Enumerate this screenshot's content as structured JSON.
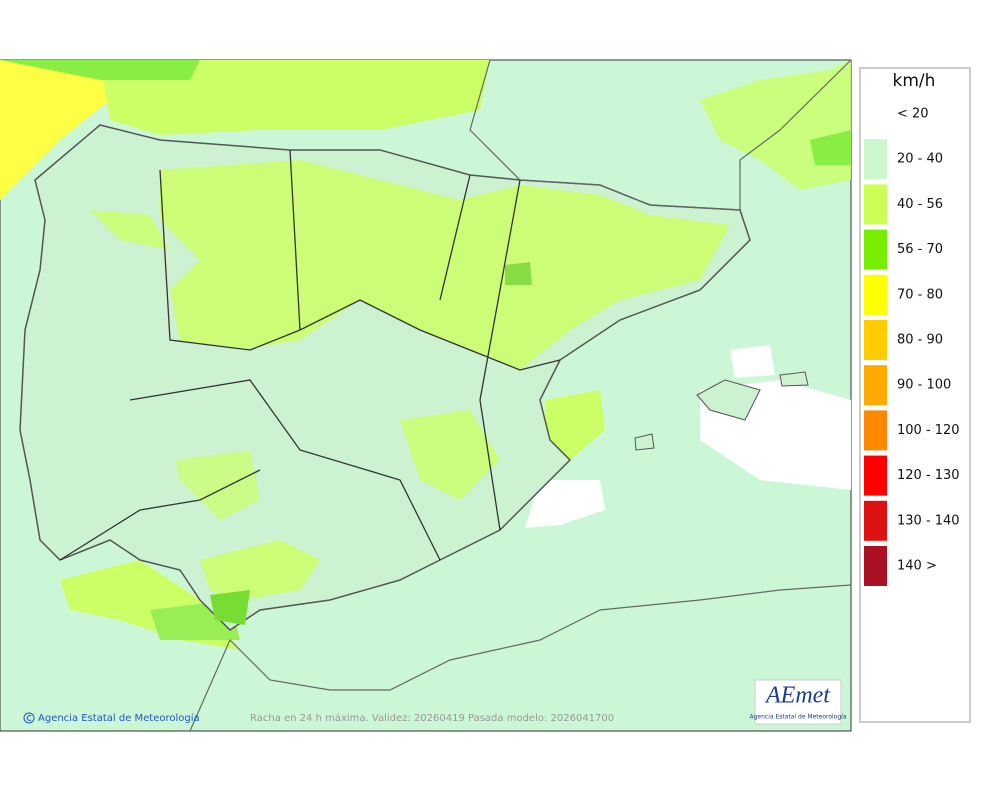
{
  "map": {
    "legend": {
      "title": "km/h",
      "items": [
        {
          "label": "< 20",
          "color": "#ffffff"
        },
        {
          "label": "20 - 40",
          "color": "#ccf7cc"
        },
        {
          "label": "40 - 56",
          "color": "#ccff55"
        },
        {
          "label": "56 - 70",
          "color": "#77ee00"
        },
        {
          "label": "70 - 80",
          "color": "#ffff00"
        },
        {
          "label": "80 - 90",
          "color": "#ffcc00"
        },
        {
          "label": "90 - 100",
          "color": "#ffaa00"
        },
        {
          "label": "100 - 120",
          "color": "#ff8800"
        },
        {
          "label": "120 - 130",
          "color": "#ff0000"
        },
        {
          "label": "130 - 140",
          "color": "#dd1111"
        },
        {
          "label": "140 >",
          "color": "#aa1122"
        }
      ]
    },
    "credit": "Agencia Estatal de Meteorología",
    "caption": "Racha en 24 h máxima. Validez: 20260419 Pasada modelo: 2026041700",
    "logo": {
      "text": "AEmet",
      "subtitle": "Agencia Estatal de Meteorología"
    }
  }
}
